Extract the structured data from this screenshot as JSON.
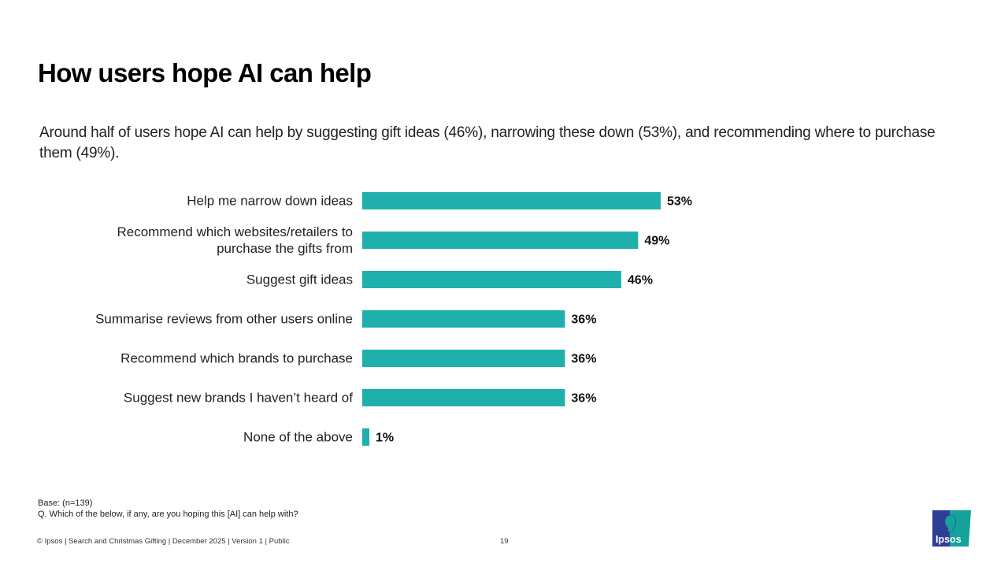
{
  "title": "How users hope AI can help",
  "subtitle": "Around half of users hope AI can help by suggesting gift ideas (46%), narrowing these down (53%), and recommending where to purchase them (49%).",
  "chart_data": {
    "type": "bar",
    "orientation": "horizontal",
    "title": "",
    "xlabel": "",
    "ylabel": "",
    "xlim": [
      0,
      60
    ],
    "grid": false,
    "categories": [
      [
        "Help me narrow down ideas"
      ],
      [
        "Recommend which websites/retailers to",
        "purchase the gifts from"
      ],
      [
        "Suggest gift ideas"
      ],
      [
        "Summarise reviews from other users online"
      ],
      [
        "Recommend which brands to purchase"
      ],
      [
        "Suggest new brands I haven’t heard of"
      ],
      [
        "None of the above"
      ]
    ],
    "values": [
      53,
      49,
      46,
      36,
      36,
      36,
      1
    ],
    "value_labels": [
      "53%",
      "49%",
      "46%",
      "36%",
      "36%",
      "36%",
      "1%"
    ],
    "bar_color": "#1fb0ac"
  },
  "notes": {
    "base": "Base:  (n=139)",
    "question": "Q. Which of the below, if any, are you hoping this [AI] can help with?"
  },
  "footer": {
    "text": "© Ipsos | Search and Christmas Gifting | December 2025 | Version 1 | Public",
    "page_number": "19"
  },
  "logo": {
    "text": "Ipsos",
    "colors": {
      "blue": "#2e3e96",
      "teal": "#14a39a"
    }
  }
}
